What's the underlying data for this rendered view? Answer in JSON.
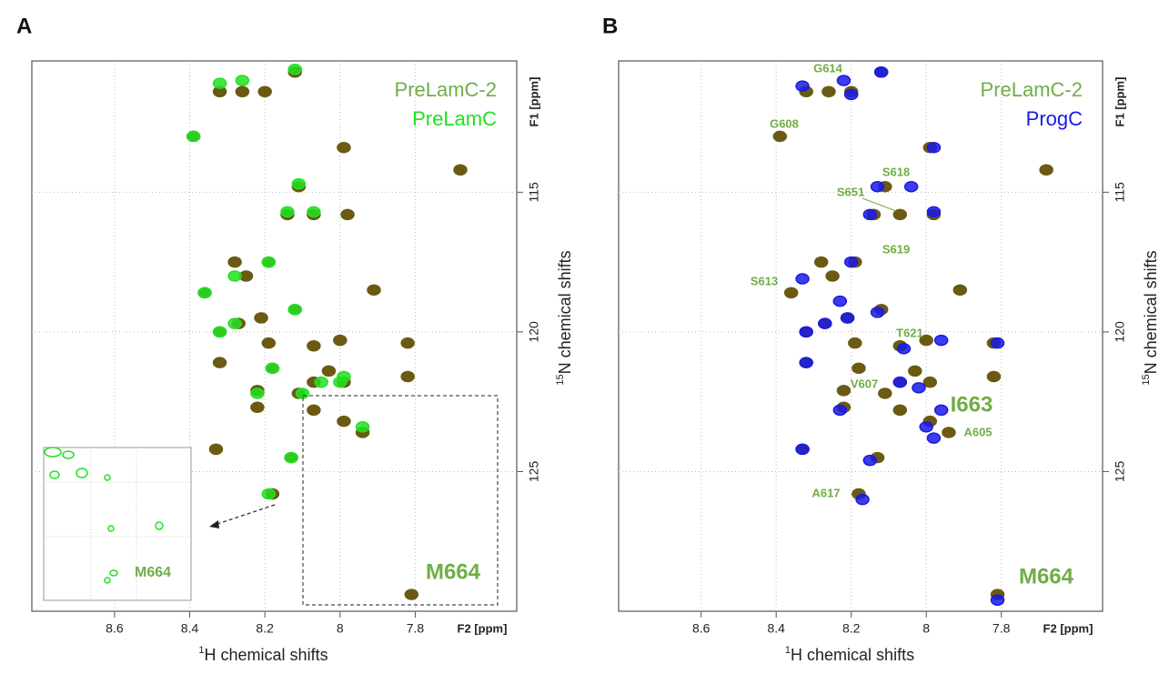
{
  "chart_data": [
    {
      "type": "scatter",
      "panel_label": "A",
      "x_label_sup": "1",
      "x_label": "H chemical shifts",
      "y_label_sup": "15",
      "y_label": "N chemical shifts",
      "x_unit_label": "F2 [ppm]",
      "y_unit_label": "F1 [ppm]",
      "xlim": [
        8.82,
        7.53
      ],
      "xticks": [
        8.6,
        8.4,
        8.2,
        8.0,
        7.8
      ],
      "ylim": [
        110.3,
        130
      ],
      "yticks": [
        115,
        120,
        125
      ],
      "grid": true,
      "series": [
        {
          "name": "PreLamC-2",
          "color": "#6b5a12",
          "label_color": "#70ad47",
          "x": [
            8.32,
            8.26,
            8.2,
            8.12,
            7.99,
            8.11,
            8.14,
            8.07,
            7.98,
            8.28,
            8.19,
            8.25,
            8.36,
            7.91,
            8.12,
            8.21,
            8.27,
            8.32,
            8.19,
            8.07,
            8.0,
            7.82,
            8.32,
            8.18,
            8.03,
            8.07,
            7.99,
            7.82,
            8.11,
            8.22,
            8.22,
            8.07,
            7.99,
            7.94,
            8.33,
            8.13,
            8.18,
            7.81,
            7.68,
            8.39
          ],
          "values": [
            111.4,
            111.4,
            111.4,
            110.7,
            113.4,
            114.8,
            115.8,
            115.8,
            115.8,
            117.5,
            117.5,
            118.0,
            118.6,
            118.5,
            119.2,
            119.5,
            119.7,
            120.0,
            120.4,
            120.5,
            120.3,
            120.4,
            121.1,
            121.3,
            121.4,
            121.8,
            121.8,
            121.6,
            122.2,
            122.1,
            122.7,
            122.8,
            123.2,
            123.6,
            124.2,
            124.5,
            125.8,
            129.4,
            114.2,
            113.0
          ]
        },
        {
          "name": "PreLamC",
          "color": "#22e022",
          "label_color": "#22e022",
          "x": [
            8.32,
            8.26,
            8.12,
            8.39,
            8.11,
            8.14,
            8.07,
            8.28,
            8.19,
            8.36,
            8.12,
            8.28,
            8.32,
            8.18,
            8.05,
            8.0,
            8.22,
            8.1,
            7.94,
            8.13,
            8.19,
            7.99
          ],
          "values": [
            111.1,
            111.0,
            110.6,
            113.0,
            114.7,
            115.7,
            115.7,
            118.0,
            117.5,
            118.6,
            119.2,
            119.7,
            120.0,
            121.3,
            121.8,
            121.8,
            122.2,
            122.2,
            123.4,
            124.5,
            125.8,
            121.6
          ]
        }
      ],
      "annotations": [
        "M664"
      ],
      "inset_label": "M664"
    },
    {
      "type": "scatter",
      "panel_label": "B",
      "x_label_sup": "1",
      "x_label": "H chemical shifts",
      "y_label_sup": "15",
      "y_label": "N chemical shifts",
      "x_unit_label": "F2 [ppm]",
      "y_unit_label": "F1 [ppm]",
      "xlim": [
        8.82,
        7.53
      ],
      "xticks": [
        8.6,
        8.4,
        8.2,
        8.0,
        7.8
      ],
      "ylim": [
        110.3,
        130
      ],
      "yticks": [
        115,
        120,
        125
      ],
      "grid": true,
      "series": [
        {
          "name": "PreLamC-2",
          "color": "#6b5a12",
          "label_color": "#70ad47",
          "x": [
            8.32,
            8.26,
            8.2,
            8.12,
            7.99,
            8.11,
            8.14,
            8.07,
            7.98,
            8.28,
            8.19,
            8.25,
            8.36,
            7.91,
            8.12,
            8.21,
            8.27,
            8.32,
            8.19,
            8.07,
            8.0,
            7.82,
            8.32,
            8.18,
            8.03,
            8.07,
            7.99,
            7.82,
            8.11,
            8.22,
            8.22,
            8.07,
            7.99,
            7.94,
            8.33,
            8.13,
            8.18,
            7.81,
            7.68,
            8.39
          ],
          "values": [
            111.4,
            111.4,
            111.4,
            110.7,
            113.4,
            114.8,
            115.8,
            115.8,
            115.8,
            117.5,
            117.5,
            118.0,
            118.6,
            118.5,
            119.2,
            119.5,
            119.7,
            120.0,
            120.4,
            120.5,
            120.3,
            120.4,
            121.1,
            121.3,
            121.4,
            121.8,
            121.8,
            121.6,
            122.2,
            122.1,
            122.7,
            122.8,
            123.2,
            123.6,
            124.2,
            124.5,
            125.8,
            129.4,
            114.2,
            113.0
          ]
        },
        {
          "name": "ProgC",
          "color": "#1a1ae6",
          "label_color": "#1a1ae6",
          "x": [
            8.33,
            8.22,
            8.12,
            8.2,
            8.13,
            8.04,
            8.15,
            7.98,
            8.2,
            8.33,
            8.23,
            8.21,
            8.27,
            8.32,
            8.13,
            8.06,
            7.96,
            7.81,
            8.32,
            8.07,
            8.02,
            7.96,
            8.23,
            8.0,
            7.98,
            8.33,
            8.15,
            8.17,
            7.81,
            7.98
          ],
          "values": [
            111.2,
            111.0,
            110.7,
            111.5,
            114.8,
            114.8,
            115.8,
            115.7,
            117.5,
            118.1,
            118.9,
            119.5,
            119.7,
            120.0,
            119.3,
            120.6,
            120.3,
            120.4,
            121.1,
            121.8,
            122.0,
            122.8,
            122.8,
            123.4,
            123.8,
            124.2,
            124.6,
            126.0,
            129.6,
            113.4
          ]
        }
      ],
      "annotations": [
        "G614",
        "G608",
        "S618",
        "S651",
        "S619",
        "S613",
        "T621",
        "V607",
        "I663",
        "A605",
        "A617",
        "M664"
      ]
    }
  ]
}
